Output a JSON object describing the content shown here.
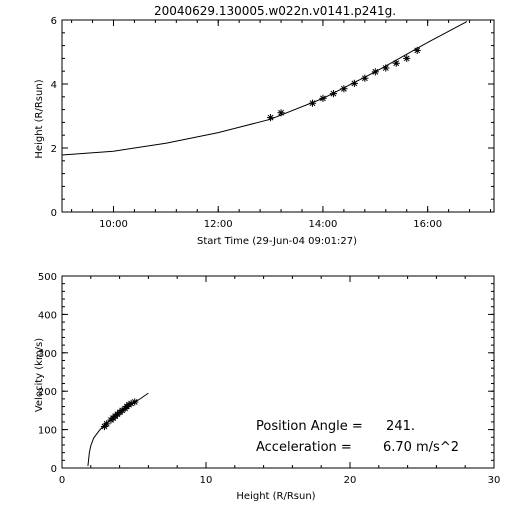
{
  "chart_data": [
    {
      "type": "scatter",
      "title": "20040629.130005.w022n.v0141.p241g.",
      "xlabel": "Start Time (29-Jun-04 09:01:27)",
      "ylabel": "Height (R/Rsun)",
      "xlim": [
        "09:01",
        "17:16"
      ],
      "ylim": [
        0,
        6
      ],
      "x_ticks": [
        "10:00",
        "12:00",
        "14:00",
        "16:00"
      ],
      "y_ticks": [
        0,
        2,
        4,
        6
      ],
      "grid": false,
      "series": [
        {
          "kind": "points",
          "marker": "asterisk",
          "x": [
            "13:00",
            "13:12",
            "13:48",
            "14:00",
            "14:12",
            "14:24",
            "14:36",
            "14:48",
            "15:00",
            "15:12",
            "15:24",
            "15:36",
            "15:48"
          ],
          "y": [
            2.95,
            3.1,
            3.4,
            3.55,
            3.7,
            3.85,
            4.02,
            4.18,
            4.38,
            4.5,
            4.65,
            4.8,
            5.05
          ]
        },
        {
          "kind": "fit-line",
          "x": [
            "09:01",
            "10:00",
            "11:00",
            "12:00",
            "13:00",
            "14:00",
            "15:00",
            "16:00",
            "16:45"
          ],
          "y": [
            1.78,
            1.9,
            2.15,
            2.48,
            2.9,
            3.55,
            4.38,
            5.3,
            5.95
          ]
        }
      ]
    },
    {
      "type": "scatter",
      "title": "",
      "xlabel": "Height (R/Rsun)",
      "ylabel": "Velocity (km/s)",
      "xlim": [
        0,
        30
      ],
      "ylim": [
        0,
        500
      ],
      "x_ticks": [
        0,
        10,
        20,
        30
      ],
      "y_ticks": [
        0,
        100,
        200,
        300,
        400,
        500
      ],
      "grid": false,
      "series": [
        {
          "kind": "points",
          "marker": "asterisk",
          "x": [
            2.95,
            3.1,
            3.4,
            3.55,
            3.7,
            3.85,
            4.02,
            4.18,
            4.38,
            4.5,
            4.65,
            4.8,
            5.05
          ],
          "y": [
            108,
            115,
            125,
            130,
            135,
            140,
            145,
            150,
            155,
            160,
            165,
            168,
            172
          ]
        },
        {
          "kind": "fit-line",
          "x": [
            1.8,
            1.9,
            2.0,
            2.2,
            2.6,
            3.0,
            3.5,
            4.0,
            4.5,
            5.0,
            5.5,
            6.0
          ],
          "y": [
            5,
            40,
            58,
            78,
            98,
            114,
            130,
            145,
            158,
            170,
            182,
            195
          ]
        }
      ],
      "annotations": [
        {
          "label": "Position Angle =",
          "value": "241."
        },
        {
          "label": "Acceleration =",
          "value": "6.70 m/s^2"
        }
      ]
    }
  ]
}
